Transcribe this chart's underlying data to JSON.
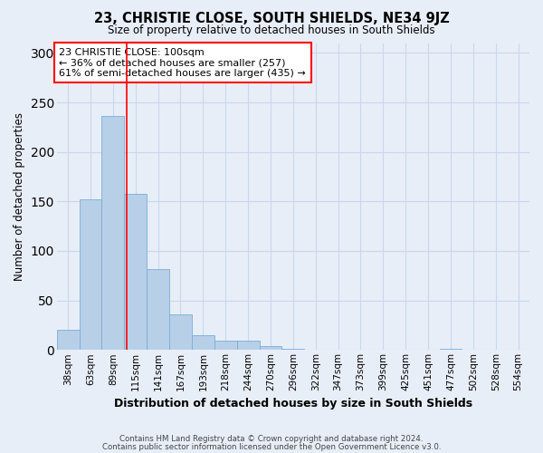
{
  "title": "23, CHRISTIE CLOSE, SOUTH SHIELDS, NE34 9JZ",
  "subtitle": "Size of property relative to detached houses in South Shields",
  "xlabel": "Distribution of detached houses by size in South Shields",
  "ylabel": "Number of detached properties",
  "bar_labels": [
    "38sqm",
    "63sqm",
    "89sqm",
    "115sqm",
    "141sqm",
    "167sqm",
    "193sqm",
    "218sqm",
    "244sqm",
    "270sqm",
    "296sqm",
    "322sqm",
    "347sqm",
    "373sqm",
    "399sqm",
    "425sqm",
    "451sqm",
    "477sqm",
    "502sqm",
    "528sqm",
    "554sqm"
  ],
  "bar_values": [
    20,
    152,
    236,
    158,
    82,
    36,
    15,
    9,
    9,
    4,
    1,
    0,
    0,
    0,
    0,
    0,
    0,
    1,
    0,
    0,
    0
  ],
  "bar_color": "#b8cfe8",
  "bar_edge_color": "#7aaed6",
  "grid_color": "#c8d8ea",
  "background_color": "#e8eef8",
  "annotation_line1": "23 CHRISTIE CLOSE: 100sqm",
  "annotation_line2": "← 36% of detached houses are smaller (257)",
  "annotation_line3": "61% of semi-detached houses are larger (435) →",
  "red_line_x": 2.62,
  "ylim": [
    0,
    310
  ],
  "yticks": [
    0,
    50,
    100,
    150,
    200,
    250,
    300
  ],
  "footer_line1": "Contains HM Land Registry data © Crown copyright and database right 2024.",
  "footer_line2": "Contains public sector information licensed under the Open Government Licence v3.0."
}
